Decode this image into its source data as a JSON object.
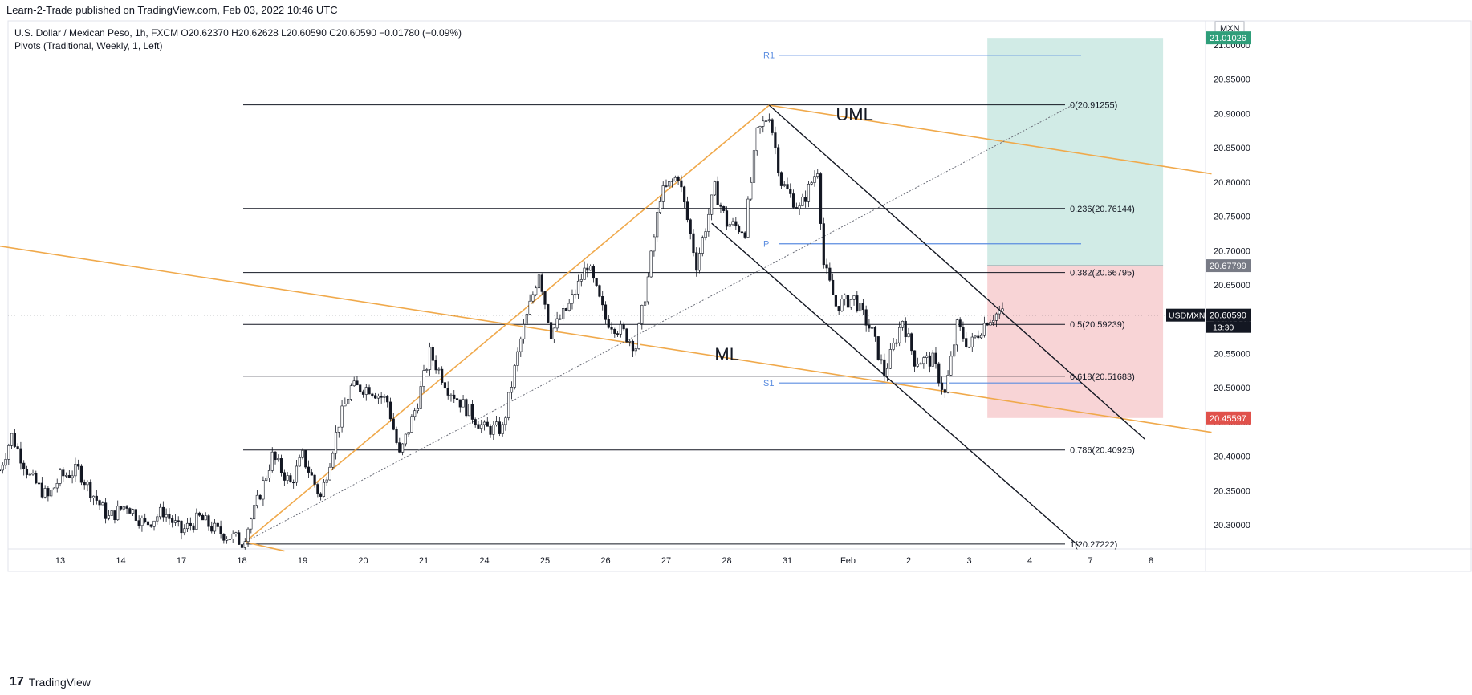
{
  "header": {
    "published": "Learn-2-Trade published on TradingView.com, Feb 03, 2022 10:46 UTC"
  },
  "legend": {
    "line1": "U.S. Dollar / Mexican Peso, 1h, FXCM  O20.62370  H20.62628  L20.60590  C20.60590  −0.01780 (−0.09%)",
    "line2": "Pivots (Traditional, Weekly, 1, Left)"
  },
  "footer": {
    "brand": "TradingView",
    "logo": "17"
  },
  "colors": {
    "up": "#131722",
    "down": "#131722",
    "fib": "#131722",
    "pivot": "#5b8de0",
    "orange": "#f0a94b",
    "channel": "#131722",
    "profit": "#d1ebe6",
    "loss": "#f8d4d6",
    "priceTag": "#131722",
    "targetTag": "#2f9e7a",
    "stopTag": "#e0514b",
    "entryTag": "#787b86"
  },
  "chart_data": {
    "type": "candlestick",
    "title": "U.S. Dollar / Mexican Peso, 1h, FXCM",
    "currency": "MXN",
    "symbol": "USDMXN",
    "ohlc": {
      "open": 20.6237,
      "high": 20.62628,
      "low": 20.6059,
      "close": 20.6059,
      "change": -0.0178,
      "change_pct": -0.09
    },
    "countdown": "13:30",
    "ylim": [
      20.265,
      21.035
    ],
    "y_ticks": [
      20.3,
      20.35,
      20.4,
      20.45,
      20.5,
      20.55,
      20.6,
      20.65,
      20.7,
      20.75,
      20.8,
      20.85,
      20.9,
      20.95,
      21.0
    ],
    "y_tick_labels": [
      "20.30000",
      "20.35000",
      "20.40000",
      "20.45000",
      "20.50000",
      "20.55000",
      "20.60000",
      "20.65000",
      "20.70000",
      "20.75000",
      "20.80000",
      "20.85000",
      "20.90000",
      "20.95000",
      "21.00000"
    ],
    "x_range": [
      0,
      20
    ],
    "x_ticks": [
      {
        "label": "13",
        "t": 1
      },
      {
        "label": "14",
        "t": 2
      },
      {
        "label": "17",
        "t": 3
      },
      {
        "label": "18",
        "t": 4
      },
      {
        "label": "19",
        "t": 5
      },
      {
        "label": "20",
        "t": 6
      },
      {
        "label": "21",
        "t": 7
      },
      {
        "label": "24",
        "t": 8
      },
      {
        "label": "25",
        "t": 9
      },
      {
        "label": "26",
        "t": 10
      },
      {
        "label": "27",
        "t": 11
      },
      {
        "label": "28",
        "t": 12
      },
      {
        "label": "31",
        "t": 13
      },
      {
        "label": "Feb",
        "t": 14
      },
      {
        "label": "2",
        "t": 15
      },
      {
        "label": "3",
        "t": 16
      },
      {
        "label": "4",
        "t": 17
      },
      {
        "label": "7",
        "t": 18
      },
      {
        "label": "8",
        "t": 19
      }
    ],
    "path": [
      [
        0.0,
        20.38
      ],
      [
        0.2,
        20.43
      ],
      [
        0.5,
        20.37
      ],
      [
        0.8,
        20.34
      ],
      [
        1.0,
        20.37
      ],
      [
        1.3,
        20.38
      ],
      [
        1.5,
        20.35
      ],
      [
        1.8,
        20.31
      ],
      [
        2.1,
        20.33
      ],
      [
        2.4,
        20.3
      ],
      [
        2.7,
        20.32
      ],
      [
        3.0,
        20.29
      ],
      [
        3.3,
        20.31
      ],
      [
        3.6,
        20.29
      ],
      [
        3.9,
        20.28
      ],
      [
        4.0,
        20.275
      ],
      [
        4.2,
        20.32
      ],
      [
        4.5,
        20.4
      ],
      [
        4.8,
        20.36
      ],
      [
        5.0,
        20.4
      ],
      [
        5.3,
        20.34
      ],
      [
        5.6,
        20.45
      ],
      [
        5.8,
        20.5
      ],
      [
        6.1,
        20.5
      ],
      [
        6.4,
        20.48
      ],
      [
        6.6,
        20.4
      ],
      [
        6.9,
        20.48
      ],
      [
        7.1,
        20.55
      ],
      [
        7.4,
        20.5
      ],
      [
        7.7,
        20.47
      ],
      [
        8.0,
        20.44
      ],
      [
        8.3,
        20.44
      ],
      [
        8.6,
        20.57
      ],
      [
        8.9,
        20.67
      ],
      [
        9.1,
        20.58
      ],
      [
        9.4,
        20.62
      ],
      [
        9.7,
        20.68
      ],
      [
        10.0,
        20.6
      ],
      [
        10.3,
        20.58
      ],
      [
        10.5,
        20.56
      ],
      [
        10.7,
        20.66
      ],
      [
        10.9,
        20.78
      ],
      [
        11.2,
        20.81
      ],
      [
        11.5,
        20.68
      ],
      [
        11.8,
        20.79
      ],
      [
        12.0,
        20.74
      ],
      [
        12.3,
        20.73
      ],
      [
        12.5,
        20.87
      ],
      [
        12.7,
        20.9
      ],
      [
        12.9,
        20.8
      ],
      [
        13.2,
        20.76
      ],
      [
        13.5,
        20.82
      ],
      [
        13.6,
        20.68
      ],
      [
        13.8,
        20.62
      ],
      [
        14.1,
        20.63
      ],
      [
        14.4,
        20.58
      ],
      [
        14.6,
        20.52
      ],
      [
        14.9,
        20.6
      ],
      [
        15.1,
        20.54
      ],
      [
        15.4,
        20.54
      ],
      [
        15.6,
        20.49
      ],
      [
        15.8,
        20.59
      ],
      [
        16.0,
        20.56
      ],
      [
        16.3,
        20.6
      ],
      [
        16.5,
        20.61
      ],
      [
        16.6,
        20.6059
      ]
    ],
    "fib_levels": [
      {
        "label": "0(20.91255)",
        "value": 20.91255
      },
      {
        "label": "0.236(20.76144)",
        "value": 20.76144
      },
      {
        "label": "0.382(20.66795)",
        "value": 20.66795
      },
      {
        "label": "0.5(20.59239)",
        "value": 20.59239
      },
      {
        "label": "0.618(20.51683)",
        "value": 20.51683
      },
      {
        "label": "0.786(20.40925)",
        "value": 20.40925
      },
      {
        "label": "1(20.27222)",
        "value": 20.27222
      }
    ],
    "pivots": [
      {
        "label": "R1",
        "value": 20.985
      },
      {
        "label": "P",
        "value": 20.71
      },
      {
        "label": "S1",
        "value": 20.507
      }
    ],
    "annotations": [
      {
        "label": "UML",
        "t": 13.8,
        "value": 20.89
      },
      {
        "label": "ML",
        "t": 11.8,
        "value": 20.54
      }
    ],
    "orange_lines": [
      {
        "points": [
          [
            -0.1,
            20.708
          ],
          [
            20.0,
            20.435
          ]
        ]
      },
      {
        "points": [
          [
            4.05,
            20.275
          ],
          [
            12.7,
            20.912
          ]
        ]
      },
      {
        "points": [
          [
            12.7,
            20.912
          ],
          [
            20.0,
            20.812
          ]
        ]
      },
      {
        "points": [
          [
            4.05,
            20.275
          ],
          [
            4.7,
            20.262
          ]
        ]
      }
    ],
    "dotted_line": {
      "points": [
        [
          4.05,
          20.275
        ],
        [
          17.7,
          20.912
        ]
      ]
    },
    "channel_lines": [
      {
        "points": [
          [
            12.7,
            20.912
          ],
          [
            18.9,
            20.425
          ]
        ]
      },
      {
        "points": [
          [
            11.75,
            20.74
          ],
          [
            17.8,
            20.27
          ]
        ]
      }
    ],
    "position": {
      "t_start": 16.3,
      "t_end": 19.2,
      "target": 21.01026,
      "entry": 20.67799,
      "stop": 20.45597
    },
    "price_tags": [
      {
        "label": "21.01026",
        "value": 21.01026,
        "kind": "target"
      },
      {
        "label": "20.67799",
        "value": 20.67799,
        "kind": "entry"
      },
      {
        "label": "20.60590",
        "value": 20.6059,
        "kind": "price"
      },
      {
        "label": "20.45597",
        "value": 20.45597,
        "kind": "stop"
      }
    ]
  }
}
